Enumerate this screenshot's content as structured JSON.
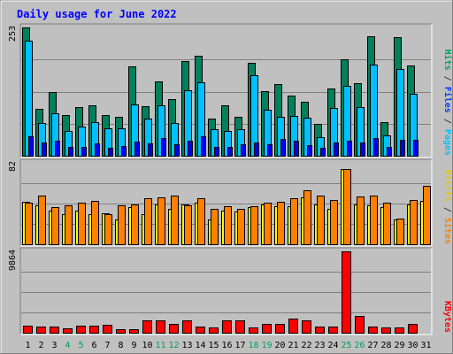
{
  "chart_data": {
    "type": "bar",
    "title": "Daily usage for June 2022",
    "categories": [
      "1",
      "2",
      "3",
      "4",
      "5",
      "6",
      "7",
      "8",
      "9",
      "10",
      "11",
      "12",
      "13",
      "14",
      "15",
      "16",
      "17",
      "18",
      "19",
      "20",
      "21",
      "22",
      "23",
      "24",
      "25",
      "26",
      "27",
      "28",
      "29",
      "30",
      "31"
    ],
    "weekend_days": [
      "4",
      "5",
      "11",
      "12",
      "18",
      "19",
      "25",
      "26"
    ],
    "panels": [
      {
        "id": "pages-files-hits",
        "ymax_label": "253",
        "ymax": 253,
        "grid": true,
        "ylabel_parts": [
          {
            "text": "Pages",
            "color": "#00c0ff"
          },
          {
            "text": " / ",
            "color": "#404040"
          },
          {
            "text": "Files",
            "color": "#0040ff"
          },
          {
            "text": " / ",
            "color": "#404040"
          },
          {
            "text": "Hits",
            "color": "#00a060"
          }
        ],
        "series": [
          {
            "name": "Hits",
            "color": "#00805c",
            "values": [
              253,
              92,
              126,
              80,
              96,
              100,
              80,
              77,
              177,
              97,
              147,
              111,
              187,
              197,
              73,
              99,
              77,
              184,
              128,
              142,
              118,
              107,
              63,
              133,
              190,
              143,
              236,
              67,
              233,
              178,
              0
            ]
          },
          {
            "name": "Files",
            "color": "#00c0ff",
            "values": [
              227,
              65,
              84,
              49,
              58,
              67,
              54,
              54,
              101,
              74,
              100,
              64,
              129,
              145,
              53,
              48,
              53,
              159,
              91,
              77,
              79,
              75,
              37,
              94,
              138,
              96,
              180,
              40,
              171,
              123,
              0
            ]
          },
          {
            "name": "Pages",
            "color": "#0000ff",
            "values": [
              39,
              27,
              30,
              18,
              17,
              24,
              15,
              19,
              28,
              24,
              35,
              23,
              30,
              39,
              18,
              17,
              23,
              26,
              23,
              33,
              29,
              21,
              16,
              27,
              30,
              26,
              35,
              17,
              32,
              31,
              0
            ]
          }
        ]
      },
      {
        "id": "sites-visits",
        "ymax_label": "82",
        "ymax": 82,
        "grid": true,
        "ylabel_parts": [
          {
            "text": "Sites",
            "color": "#ff8000"
          },
          {
            "text": " / ",
            "color": "#404040"
          },
          {
            "text": "Visits",
            "color": "#e8c800"
          }
        ],
        "series": [
          {
            "name": "Visits",
            "color": "#ffff00",
            "values": [
              43,
              39,
              34,
              30,
              34,
              30,
              31,
              25,
              37,
              30,
              40,
              36,
              40,
              42,
              25,
              34,
              33,
              37,
              40,
              38,
              38,
              47,
              40,
              36,
              76,
              40,
              39,
              37,
              25,
              40,
              44
            ]
          },
          {
            "name": "Sites",
            "color": "#ff8000",
            "values": [
              42,
              49,
              37,
              39,
              42,
              44,
              30,
              39,
              40,
              46,
              47,
              49,
              39,
              46,
              36,
              38,
              36,
              38,
              42,
              43,
              46,
              54,
              49,
              45,
              76,
              48,
              49,
              42,
              26,
              45,
              59
            ]
          }
        ]
      },
      {
        "id": "kbytes",
        "ymax_label": "9864",
        "ymax": 9864,
        "grid": true,
        "ylabel_parts": [
          {
            "text": "KBytes",
            "color": "#ff0000"
          }
        ],
        "series": [
          {
            "name": "KBytes",
            "color": "#ff0000",
            "values": [
              900,
              800,
              800,
              550,
              900,
              900,
              950,
              450,
              450,
              1500,
              1550,
              1050,
              1450,
              750,
              650,
              1550,
              1450,
              650,
              1050,
              1050,
              1700,
              1550,
              800,
              750,
              9864,
              2050,
              750,
              650,
              650,
              1050,
              0
            ]
          }
        ]
      }
    ]
  },
  "colors": {
    "frame_bg": "#c0c0c0",
    "plot_bg": "#c0c0c0",
    "title": "#0000ff",
    "weekday_label": "#000000",
    "weekend_label": "#00a060"
  }
}
